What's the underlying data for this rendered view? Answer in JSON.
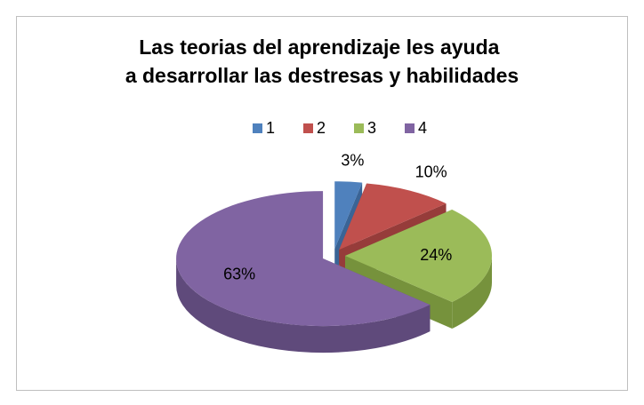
{
  "chart_data": {
    "type": "pie",
    "title": "Las teorias del aprendizaje les ayuda a desarrollar las destresas y habilidades",
    "categories": [
      "1",
      "2",
      "3",
      "4"
    ],
    "values": [
      3,
      10,
      24,
      63
    ],
    "value_labels": [
      "3%",
      "10%",
      "24%",
      "63%"
    ],
    "colors": [
      "#4f81bd",
      "#c0504d",
      "#9bbb59",
      "#8064a2"
    ],
    "side_colors": [
      "#3a6496",
      "#963c3a",
      "#76923c",
      "#5f4a7b"
    ],
    "legend": "top"
  }
}
